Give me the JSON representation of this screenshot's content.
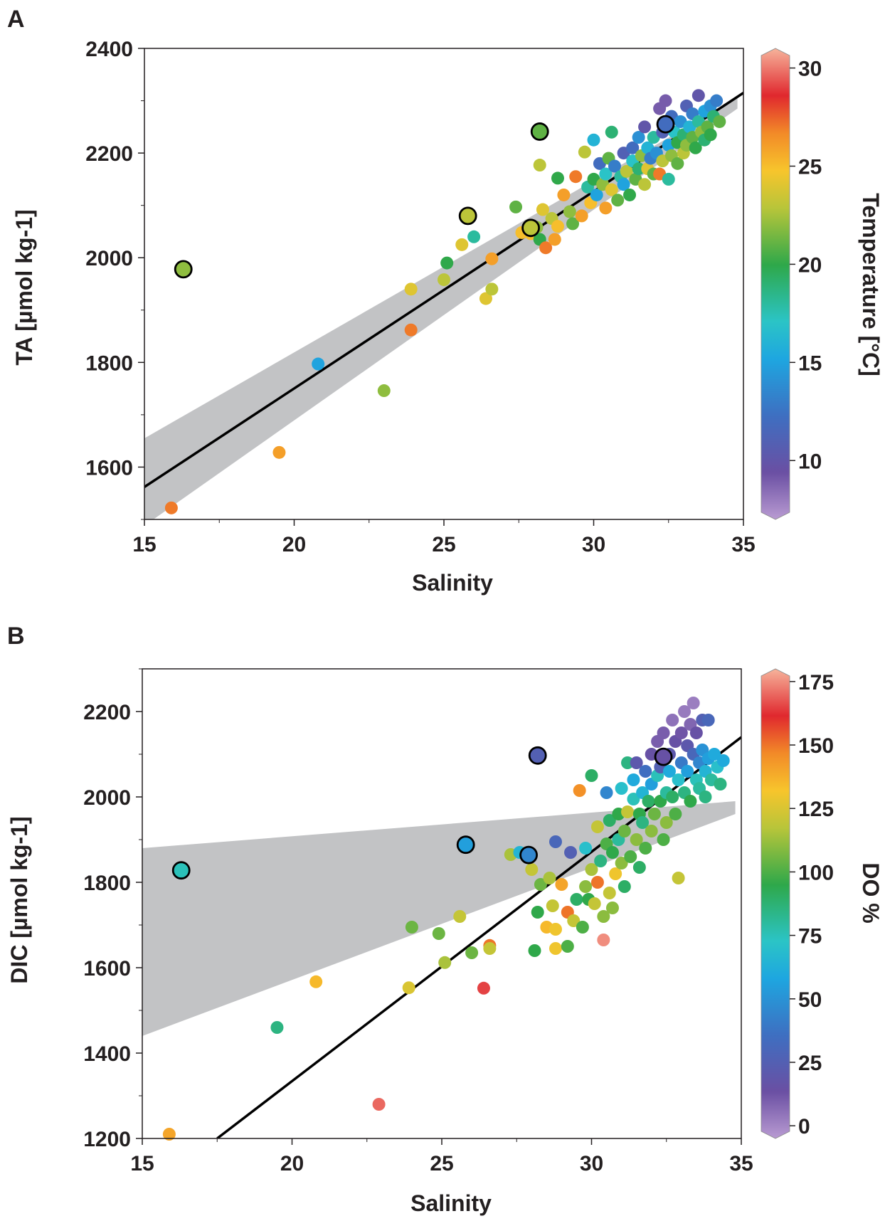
{
  "chart_data": [
    {
      "panel": "A",
      "type": "scatter",
      "xlabel": "Salinity",
      "ylabel": "TA [µmol kg-1]",
      "xlim": [
        15,
        35
      ],
      "ylim": [
        1500,
        2400
      ],
      "xticks": [
        15,
        20,
        25,
        30,
        35
      ],
      "yticks": [
        1600,
        1800,
        2000,
        2200,
        2400
      ],
      "colorbar": {
        "label": "Temperature [°C]",
        "min": 7,
        "max": 31,
        "ticks": [
          10,
          15,
          20,
          25,
          30
        ]
      },
      "fit_line": {
        "x": [
          15,
          35
        ],
        "y": [
          1562,
          2315
        ]
      },
      "confidence_band": {
        "x": [
          15,
          34.8
        ],
        "upper": [
          1655,
          2305
        ],
        "lower": [
          1488,
          2285
        ]
      },
      "points": [
        [
          15.9,
          1522,
          27
        ],
        [
          19.5,
          1628,
          26
        ],
        [
          20.8,
          1797,
          15
        ],
        [
          23.0,
          1746,
          22
        ],
        [
          23.9,
          1862,
          27
        ],
        [
          23.9,
          1940,
          24
        ],
        [
          25.0,
          1958,
          23
        ],
        [
          25.1,
          1990,
          20
        ],
        [
          25.6,
          2025,
          24
        ],
        [
          26.4,
          1922,
          24
        ],
        [
          26.6,
          1940,
          23
        ],
        [
          26.6,
          1998,
          26
        ],
        [
          26.0,
          2040,
          18
        ],
        [
          27.4,
          2097,
          21
        ],
        [
          27.6,
          2048,
          25
        ],
        [
          27.9,
          2046,
          25
        ],
        [
          28.1,
          2058,
          22
        ],
        [
          28.2,
          2035,
          20
        ],
        [
          28.2,
          2177,
          23
        ],
        [
          28.3,
          2092,
          24
        ],
        [
          28.4,
          2019,
          27
        ],
        [
          28.7,
          2035,
          26
        ],
        [
          28.6,
          2075,
          23
        ],
        [
          28.8,
          2060,
          25
        ],
        [
          28.8,
          2152,
          20
        ],
        [
          29.0,
          2120,
          26
        ],
        [
          29.2,
          2088,
          22
        ],
        [
          29.3,
          2065,
          21
        ],
        [
          29.4,
          2155,
          27
        ],
        [
          29.6,
          2080,
          26
        ],
        [
          29.7,
          2202,
          23
        ],
        [
          29.8,
          2135,
          18
        ],
        [
          29.9,
          2105,
          25
        ],
        [
          30.0,
          2150,
          20
        ],
        [
          30.0,
          2225,
          16
        ],
        [
          30.1,
          2120,
          15
        ],
        [
          30.2,
          2180,
          12
        ],
        [
          30.3,
          2140,
          22
        ],
        [
          30.4,
          2095,
          26
        ],
        [
          30.4,
          2160,
          17
        ],
        [
          30.5,
          2190,
          21
        ],
        [
          30.6,
          2130,
          24
        ],
        [
          30.6,
          2240,
          19
        ],
        [
          30.7,
          2175,
          13
        ],
        [
          30.8,
          2110,
          21
        ],
        [
          30.9,
          2155,
          18
        ],
        [
          31.0,
          2200,
          11
        ],
        [
          31.0,
          2140,
          15
        ],
        [
          31.1,
          2165,
          23
        ],
        [
          31.2,
          2120,
          20
        ],
        [
          31.3,
          2210,
          12
        ],
        [
          31.3,
          2185,
          17
        ],
        [
          31.4,
          2150,
          21
        ],
        [
          31.5,
          2230,
          14
        ],
        [
          31.5,
          2170,
          19
        ],
        [
          31.6,
          2195,
          22
        ],
        [
          31.7,
          2140,
          23
        ],
        [
          31.7,
          2250,
          10
        ],
        [
          31.8,
          2210,
          16
        ],
        [
          31.8,
          2170,
          24
        ],
        [
          31.9,
          2190,
          13
        ],
        [
          32.0,
          2230,
          18
        ],
        [
          32.0,
          2160,
          21
        ],
        [
          32.1,
          2200,
          14
        ],
        [
          32.2,
          2160,
          27
        ],
        [
          32.2,
          2285,
          9
        ],
        [
          32.3,
          2240,
          11
        ],
        [
          32.3,
          2185,
          23
        ],
        [
          32.4,
          2300,
          9
        ],
        [
          32.5,
          2215,
          15
        ],
        [
          32.5,
          2150,
          18
        ],
        [
          32.6,
          2270,
          12
        ],
        [
          32.6,
          2195,
          22
        ],
        [
          32.7,
          2240,
          17
        ],
        [
          32.8,
          2220,
          20
        ],
        [
          32.8,
          2180,
          21
        ],
        [
          32.9,
          2260,
          14
        ],
        [
          33.0,
          2235,
          19
        ],
        [
          33.0,
          2200,
          23
        ],
        [
          33.1,
          2290,
          11
        ],
        [
          33.1,
          2215,
          22
        ],
        [
          33.2,
          2250,
          16
        ],
        [
          33.3,
          2230,
          21
        ],
        [
          33.3,
          2275,
          13
        ],
        [
          33.4,
          2210,
          20
        ],
        [
          33.5,
          2310,
          10
        ],
        [
          33.5,
          2260,
          18
        ],
        [
          33.6,
          2240,
          22
        ],
        [
          33.7,
          2280,
          15
        ],
        [
          33.7,
          2225,
          19
        ],
        [
          33.8,
          2250,
          21
        ],
        [
          33.9,
          2290,
          14
        ],
        [
          33.9,
          2235,
          20
        ],
        [
          34.0,
          2270,
          19
        ],
        [
          34.1,
          2300,
          13
        ],
        [
          34.2,
          2260,
          21
        ]
      ],
      "outliers": [
        [
          16.3,
          1978,
          22
        ],
        [
          25.8,
          2080,
          23
        ],
        [
          27.9,
          2057,
          23
        ],
        [
          28.2,
          2241,
          21
        ],
        [
          32.4,
          2255,
          12
        ]
      ]
    },
    {
      "panel": "B",
      "type": "scatter",
      "xlabel": "Salinity",
      "ylabel": "DIC [µmol kg-1]",
      "xlim": [
        15,
        35
      ],
      "ylim": [
        1200,
        2300
      ],
      "xticks": [
        15,
        20,
        25,
        30,
        35
      ],
      "yticks": [
        1200,
        1400,
        1600,
        1800,
        2000,
        2200
      ],
      "colorbar": {
        "label": "DO %",
        "min": -5,
        "max": 180,
        "ticks": [
          0,
          25,
          50,
          75,
          100,
          125,
          150,
          175
        ]
      },
      "fit_line": {
        "x": [
          17.5,
          35
        ],
        "y": [
          1200,
          2140
        ]
      },
      "confidence_band": {
        "x": [
          15,
          34.8
        ],
        "upper": [
          1880,
          1990
        ],
        "lower": [
          1440,
          1960
        ]
      },
      "points": [
        [
          15.9,
          1210,
          140
        ],
        [
          19.5,
          1460,
          85
        ],
        [
          20.8,
          1567,
          135
        ],
        [
          22.9,
          1280,
          170
        ],
        [
          23.9,
          1553,
          125
        ],
        [
          24.0,
          1695,
          105
        ],
        [
          24.9,
          1680,
          105
        ],
        [
          25.1,
          1612,
          115
        ],
        [
          25.6,
          1720,
          120
        ],
        [
          26.0,
          1635,
          105
        ],
        [
          26.4,
          1552,
          165
        ],
        [
          26.6,
          1652,
          150
        ],
        [
          26.6,
          1645,
          120
        ],
        [
          27.3,
          1865,
          115
        ],
        [
          27.6,
          1870,
          65
        ],
        [
          28.0,
          1830,
          120
        ],
        [
          28.1,
          1640,
          95
        ],
        [
          28.2,
          1730,
          95
        ],
        [
          28.3,
          1795,
          105
        ],
        [
          28.5,
          1695,
          135
        ],
        [
          28.6,
          1810,
          115
        ],
        [
          28.7,
          1745,
          120
        ],
        [
          28.8,
          1690,
          130
        ],
        [
          28.8,
          1645,
          130
        ],
        [
          28.8,
          1895,
          30
        ],
        [
          29.0,
          1795,
          140
        ],
        [
          29.2,
          1650,
          100
        ],
        [
          29.2,
          1730,
          150
        ],
        [
          29.3,
          1870,
          25
        ],
        [
          29.4,
          1710,
          120
        ],
        [
          29.5,
          1760,
          90
        ],
        [
          29.6,
          2015,
          145
        ],
        [
          29.7,
          1695,
          100
        ],
        [
          29.8,
          1790,
          110
        ],
        [
          29.8,
          1880,
          70
        ],
        [
          29.9,
          1760,
          95
        ],
        [
          30.0,
          2050,
          90
        ],
        [
          30.0,
          1830,
          115
        ],
        [
          30.1,
          1750,
          120
        ],
        [
          30.2,
          1930,
          120
        ],
        [
          30.2,
          1800,
          150
        ],
        [
          30.3,
          1850,
          85
        ],
        [
          30.4,
          1665,
          175
        ],
        [
          30.4,
          1720,
          110
        ],
        [
          30.5,
          1890,
          100
        ],
        [
          30.5,
          2010,
          45
        ],
        [
          30.6,
          1775,
          120
        ],
        [
          30.6,
          1945,
          90
        ],
        [
          30.7,
          1740,
          110
        ],
        [
          30.7,
          1870,
          95
        ],
        [
          30.8,
          1820,
          130
        ],
        [
          30.9,
          1960,
          95
        ],
        [
          30.9,
          1900,
          80
        ],
        [
          31.0,
          2020,
          70
        ],
        [
          31.0,
          1845,
          110
        ],
        [
          31.1,
          1790,
          90
        ],
        [
          31.1,
          1920,
          105
        ],
        [
          31.2,
          2080,
          85
        ],
        [
          31.2,
          1965,
          120
        ],
        [
          31.3,
          1860,
          100
        ],
        [
          31.4,
          1995,
          75
        ],
        [
          31.4,
          2040,
          60
        ],
        [
          31.5,
          1900,
          110
        ],
        [
          31.5,
          2080,
          20
        ],
        [
          31.6,
          1960,
          95
        ],
        [
          31.6,
          1835,
          90
        ],
        [
          31.7,
          2010,
          65
        ],
        [
          31.7,
          1940,
          85
        ],
        [
          31.8,
          2060,
          35
        ],
        [
          31.8,
          1880,
          100
        ],
        [
          31.9,
          1990,
          90
        ],
        [
          32.0,
          2100,
          15
        ],
        [
          32.0,
          2030,
          55
        ],
        [
          32.0,
          1920,
          110
        ],
        [
          32.1,
          1960,
          105
        ],
        [
          32.2,
          2050,
          75
        ],
        [
          32.2,
          2130,
          10
        ],
        [
          32.3,
          1990,
          95
        ],
        [
          32.3,
          2070,
          25
        ],
        [
          32.4,
          1900,
          100
        ],
        [
          32.4,
          2150,
          10
        ],
        [
          32.5,
          2010,
          80
        ],
        [
          32.5,
          1940,
          110
        ],
        [
          32.6,
          2100,
          20
        ],
        [
          32.6,
          2060,
          60
        ],
        [
          32.7,
          2180,
          5
        ],
        [
          32.7,
          2000,
          90
        ],
        [
          32.8,
          2130,
          15
        ],
        [
          32.8,
          1960,
          100
        ],
        [
          32.9,
          2040,
          70
        ],
        [
          32.9,
          1810,
          120
        ],
        [
          33.0,
          2150,
          12
        ],
        [
          33.0,
          2080,
          40
        ],
        [
          33.1,
          2200,
          3
        ],
        [
          33.1,
          2010,
          85
        ],
        [
          33.2,
          2120,
          20
        ],
        [
          33.2,
          2060,
          55
        ],
        [
          33.3,
          2170,
          8
        ],
        [
          33.3,
          1990,
          95
        ],
        [
          33.4,
          2100,
          30
        ],
        [
          33.4,
          2220,
          2
        ],
        [
          33.5,
          2040,
          75
        ],
        [
          33.5,
          2150,
          15
        ],
        [
          33.6,
          2080,
          45
        ],
        [
          33.6,
          2020,
          80
        ],
        [
          33.7,
          2180,
          25
        ],
        [
          33.7,
          2110,
          50
        ],
        [
          33.8,
          2060,
          65
        ],
        [
          33.8,
          2000,
          85
        ],
        [
          33.9,
          2180,
          30
        ],
        [
          33.9,
          2090,
          55
        ],
        [
          34.0,
          2040,
          80
        ],
        [
          34.1,
          2100,
          60
        ],
        [
          34.2,
          2070,
          70
        ],
        [
          34.3,
          2030,
          85
        ],
        [
          34.4,
          2085,
          60
        ]
      ],
      "outliers": [
        [
          16.3,
          1828,
          75
        ],
        [
          25.8,
          1888,
          55
        ],
        [
          27.9,
          1864,
          45
        ],
        [
          28.2,
          2097,
          25
        ],
        [
          32.4,
          2094,
          15
        ]
      ]
    }
  ],
  "labels": {
    "panel_a": "A",
    "panel_b": "B",
    "a_xlabel": "Salinity",
    "a_ylabel": "TA [µmol kg-1]",
    "a_cbar": "Temperature [°C]",
    "b_xlabel": "Salinity",
    "b_ylabel": "DIC [µmol kg-1]",
    "b_cbar": "DO %"
  }
}
